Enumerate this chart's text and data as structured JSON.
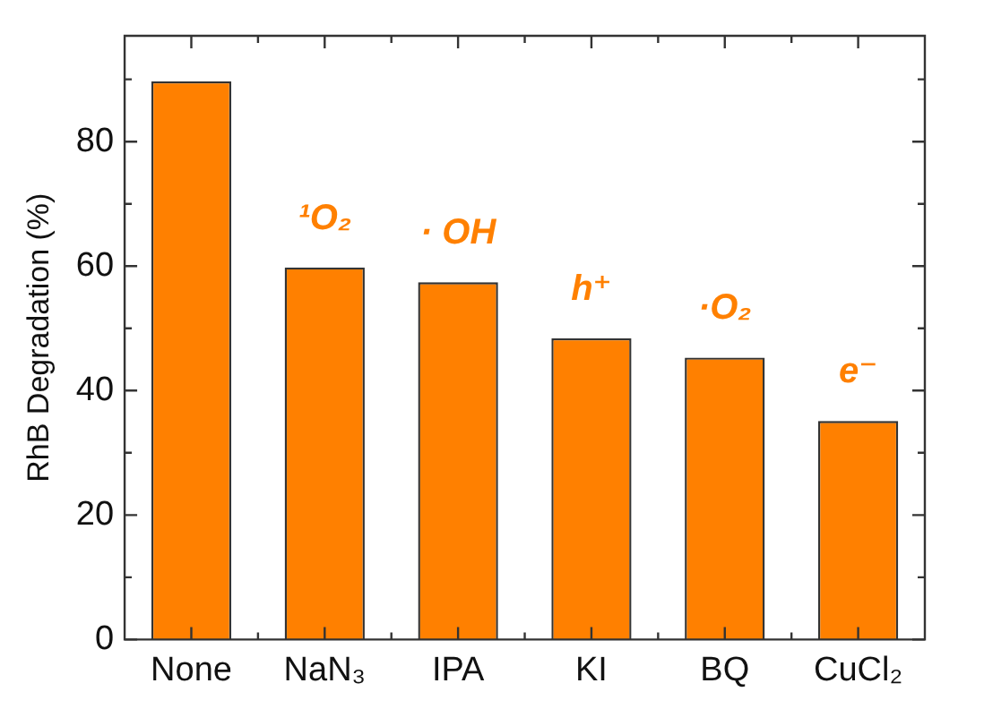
{
  "chart_data": {
    "type": "bar",
    "ylabel": "RhB Degradation (%)",
    "categories": [
      "None",
      "NaN₃",
      "IPA",
      "KI",
      "BQ",
      "CuCl₂"
    ],
    "values": [
      89.7,
      59.8,
      57.4,
      48.4,
      45.3,
      35.1
    ],
    "color": "#ff8000",
    "ylim": [
      0,
      97
    ],
    "yticks": [
      0,
      {
        "value": 10,
        "label": null
      },
      20,
      {
        "value": 30,
        "label": null
      },
      40,
      {
        "value": 50,
        "label": null
      },
      60,
      {
        "value": 70,
        "label": null
      },
      80,
      {
        "value": 90,
        "label": null
      }
    ],
    "grid": false,
    "legend": false,
    "annotations": [
      "¹O₂",
      "· OH",
      "h⁺",
      "·O₂",
      "e⁻"
    ]
  }
}
